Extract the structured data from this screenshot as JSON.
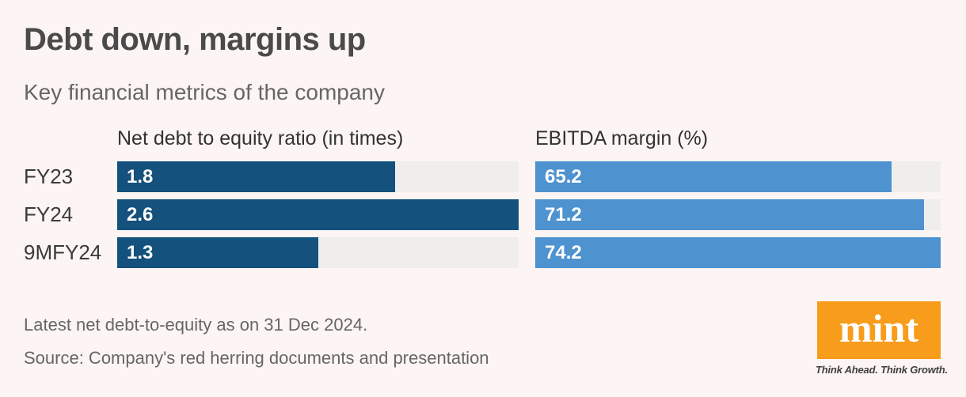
{
  "page": {
    "title": "Debt down, margins up",
    "subtitle": "Key financial metrics of the company"
  },
  "chart_data": {
    "type": "bar",
    "orientation": "horizontal",
    "categories": [
      "FY23",
      "FY24",
      "9MFY24"
    ],
    "series": [
      {
        "name": "Net debt to equity ratio (in times)",
        "values": [
          1.8,
          2.6,
          1.3
        ],
        "axis_max": 2.6,
        "color": "#14517c"
      },
      {
        "name": "EBITDA margin (%)",
        "values": [
          65.2,
          71.2,
          74.2
        ],
        "axis_max": 74.2,
        "color": "#4e92d0"
      }
    ],
    "value_label_position": "inside-left",
    "value_label_color": "#ffffff",
    "track_color": "#f0eded",
    "grid": false,
    "legend": "none"
  },
  "footnotes": {
    "note": "Latest net debt-to-equity as on 31 Dec 2024.",
    "source": "Source: Company's red herring documents and presentation"
  },
  "branding": {
    "logo_text": "mint",
    "tagline": "Think Ahead. Think Growth.",
    "logo_color": "#f89c1c",
    "logo_text_color": "#ffffff"
  },
  "colors": {
    "background": "#fcf5f3",
    "title": "#4a4a4a",
    "subtitle": "#666666",
    "row_label": "#3a3a3a",
    "column_header": "#333333"
  }
}
